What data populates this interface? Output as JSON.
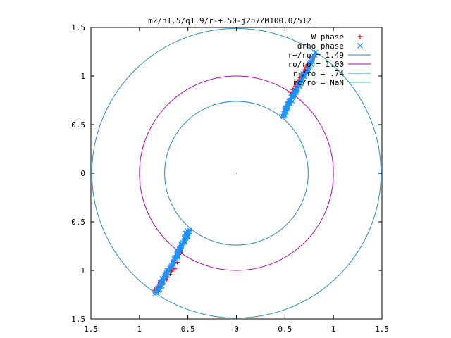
{
  "chart_data": {
    "type": "scatter",
    "title": "m2/n1.5/q1.9/r-+.50-j257/M100.0/512",
    "xlim": [
      -1.5,
      1.5
    ],
    "ylim": [
      -1.5,
      1.5
    ],
    "grid": false,
    "legend_position": "top-right",
    "x_ticks": [
      {
        "value": -1.5,
        "label": "1.5"
      },
      {
        "value": -1.0,
        "label": "1"
      },
      {
        "value": -0.5,
        "label": "0.5"
      },
      {
        "value": 0.0,
        "label": "0"
      },
      {
        "value": 0.5,
        "label": "0.5"
      },
      {
        "value": 1.0,
        "label": "1"
      },
      {
        "value": 1.5,
        "label": "1.5"
      }
    ],
    "y_ticks": [
      {
        "value": 1.5,
        "label": "1.5"
      },
      {
        "value": 1.0,
        "label": "1"
      },
      {
        "value": 0.5,
        "label": "0.5"
      },
      {
        "value": 0.0,
        "label": "0"
      },
      {
        "value": -0.5,
        "label": "0.5"
      },
      {
        "value": -1.0,
        "label": "1"
      },
      {
        "value": -1.5,
        "label": "1.5"
      }
    ],
    "series": [
      {
        "name": "W phase",
        "marker": "plus",
        "color": "#ff0000",
        "segments": [
          {
            "from": [
              0.57,
              0.82
            ],
            "to": [
              0.79,
              1.21
            ],
            "count": 40
          },
          {
            "from": [
              -0.62,
              -0.93
            ],
            "to": [
              -0.83,
              -1.22
            ],
            "count": 30
          },
          {
            "from": [
              -0.58,
              -0.79
            ],
            "to": [
              -0.61,
              -0.84
            ],
            "count": 8
          }
        ]
      },
      {
        "name": "drho phase",
        "marker": "cross",
        "color": "#1e90ff",
        "segments": [
          {
            "from": [
              0.47,
              0.58
            ],
            "to": [
              0.61,
              0.85
            ],
            "count": 70
          },
          {
            "from": [
              0.61,
              0.85
            ],
            "to": [
              0.81,
              1.23
            ],
            "count": 55
          },
          {
            "from": [
              -0.49,
              -0.59
            ],
            "to": [
              -0.62,
              -0.85
            ],
            "count": 70
          },
          {
            "from": [
              -0.62,
              -0.85
            ],
            "to": [
              -0.83,
              -1.24
            ],
            "count": 60
          }
        ]
      }
    ],
    "circles": [
      {
        "name": "r+/ro = 1.49",
        "radius": 1.49,
        "color": "#2a8ec0"
      },
      {
        "name": "ro/ro = 1.00",
        "radius": 1.0,
        "color": "#bb00bb"
      },
      {
        "name": "r-/ro = .74",
        "radius": 0.74,
        "color": "#2a8ec0"
      },
      {
        "name": "rc/ro = NaN",
        "radius": null,
        "color": "#33cccc"
      }
    ]
  }
}
